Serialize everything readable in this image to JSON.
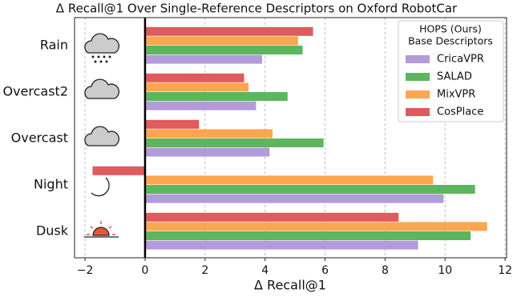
{
  "chart_data": {
    "type": "barh",
    "title": "Δ Recall@1 Over Single-Reference Descriptors on Oxford RobotCar",
    "x_label": "Δ Recall@1",
    "categories": [
      "Rain",
      "Overcast2",
      "Overcast",
      "Night",
      "Dusk"
    ],
    "legend_title": [
      "HOPS (Ours)",
      "Base Descriptors"
    ],
    "legend_position": "upper right",
    "series": [
      {
        "name": "CricaVPR",
        "color": "#b39ad8",
        "values": [
          3.9,
          3.7,
          4.15,
          9.95,
          9.1
        ]
      },
      {
        "name": "SALAD",
        "color": "#5db55d",
        "values": [
          5.25,
          4.75,
          5.95,
          11.0,
          10.85
        ]
      },
      {
        "name": "MixVPR",
        "color": "#fca64f",
        "values": [
          5.1,
          3.45,
          4.25,
          9.6,
          11.4
        ]
      },
      {
        "name": "CosPlace",
        "color": "#e05a5e",
        "values": [
          5.6,
          3.3,
          1.8,
          -1.75,
          8.45
        ]
      }
    ],
    "xlim": [
      -2.35,
      12.05
    ],
    "xticks": [
      {
        "value": -2,
        "label": "−2"
      },
      0,
      2,
      4,
      6,
      8,
      10,
      12
    ],
    "grid": true
  }
}
